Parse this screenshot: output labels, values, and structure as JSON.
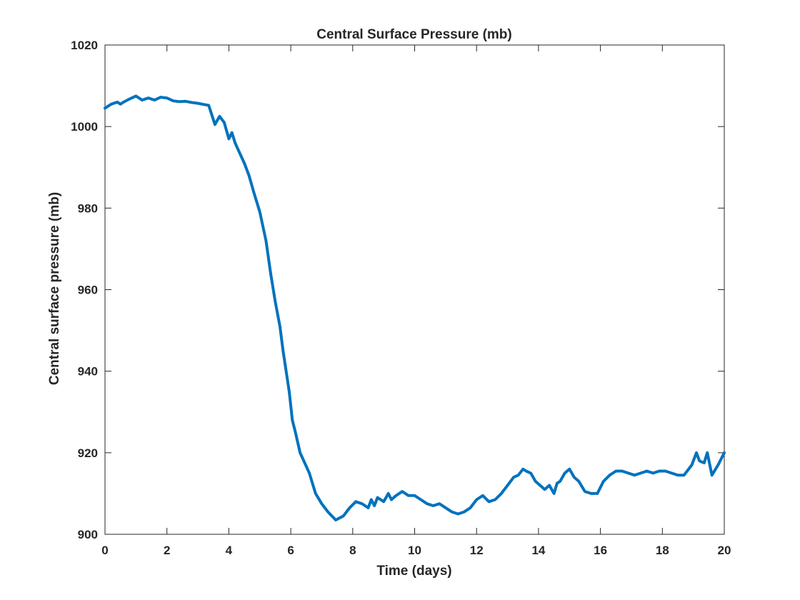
{
  "chart_data": {
    "type": "line",
    "title": "Central Surface Pressure (mb)",
    "xlabel": "Time (days)",
    "ylabel": "Central surface pressure (mb)",
    "xlim": [
      0,
      20
    ],
    "ylim": [
      900,
      1020
    ],
    "xticks": [
      0,
      2,
      4,
      6,
      8,
      10,
      12,
      14,
      16,
      18,
      20
    ],
    "yticks": [
      900,
      920,
      940,
      960,
      980,
      1000,
      1020
    ],
    "grid": false,
    "legend": "none",
    "series": [
      {
        "color": "#0072BD",
        "x": [
          0,
          0.2,
          0.4,
          0.5,
          0.6,
          0.8,
          1.0,
          1.2,
          1.4,
          1.6,
          1.8,
          2.0,
          2.2,
          2.4,
          2.6,
          2.8,
          3.0,
          3.2,
          3.35,
          3.55,
          3.7,
          3.85,
          4.0,
          4.1,
          4.2,
          4.35,
          4.5,
          4.65,
          4.8,
          5.0,
          5.2,
          5.35,
          5.5,
          5.65,
          5.75,
          5.85,
          5.95,
          6.05,
          6.15,
          6.3,
          6.45,
          6.6,
          6.8,
          7.0,
          7.2,
          7.45,
          7.7,
          7.9,
          8.1,
          8.3,
          8.5,
          8.6,
          8.7,
          8.8,
          9.0,
          9.15,
          9.25,
          9.4,
          9.6,
          9.8,
          10.0,
          10.2,
          10.4,
          10.6,
          10.8,
          11.0,
          11.2,
          11.4,
          11.6,
          11.8,
          12.0,
          12.2,
          12.4,
          12.6,
          12.8,
          13.0,
          13.2,
          13.35,
          13.5,
          13.6,
          13.75,
          13.9,
          14.05,
          14.2,
          14.35,
          14.5,
          14.6,
          14.7,
          14.85,
          15.0,
          15.15,
          15.3,
          15.5,
          15.7,
          15.9,
          16.1,
          16.3,
          16.5,
          16.7,
          16.9,
          17.1,
          17.3,
          17.5,
          17.7,
          17.9,
          18.1,
          18.3,
          18.5,
          18.7,
          18.85,
          18.95,
          19.1,
          19.2,
          19.35,
          19.45,
          19.6,
          19.8,
          20.0
        ],
        "y": [
          1004.5,
          1005.5,
          1006,
          1005.5,
          1006,
          1006.8,
          1007.5,
          1006.5,
          1007,
          1006.5,
          1007.2,
          1007,
          1006.3,
          1006.1,
          1006.2,
          1005.9,
          1005.7,
          1005.4,
          1005.2,
          1000.5,
          1002.5,
          1001,
          997,
          998.5,
          996,
          993.5,
          991,
          988,
          984,
          979,
          972,
          964,
          957,
          951,
          945,
          940,
          935,
          928,
          925,
          920,
          917.5,
          915,
          910,
          907.5,
          905.5,
          903.5,
          904.5,
          906.5,
          908,
          907.5,
          906.5,
          908.5,
          907,
          909,
          908,
          910,
          908.5,
          909.5,
          910.5,
          909.5,
          909.5,
          908.5,
          907.5,
          907,
          907.5,
          906.5,
          905.5,
          905,
          905.5,
          906.5,
          908.5,
          909.5,
          908,
          908.5,
          910,
          912,
          914,
          914.5,
          916,
          915.5,
          915,
          913,
          912,
          911,
          912,
          910,
          912.5,
          913,
          915,
          916,
          914,
          913,
          910.5,
          910,
          910,
          913,
          914.5,
          915.5,
          915.5,
          915,
          914.5,
          915,
          915.5,
          915,
          915.5,
          915.5,
          915,
          914.5,
          914.5,
          916,
          917,
          920,
          918,
          917.5,
          920,
          914.5,
          917,
          920
        ]
      }
    ]
  }
}
